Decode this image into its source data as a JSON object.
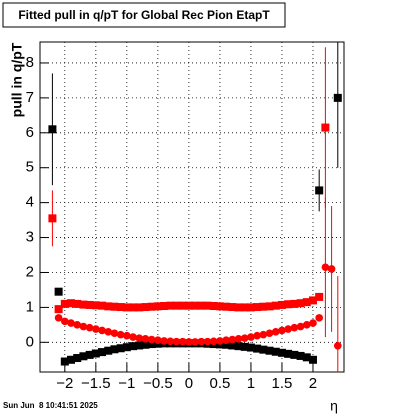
{
  "chart_data": {
    "type": "scatter",
    "title": "Fitted pull in q/pT for Global Rec Pion EtapT",
    "y_label": "pull in q/pT",
    "x_label": "η",
    "timestamp": "Sun Jun  8 10:41:51 2025",
    "xlim": [
      -2.4,
      2.5
    ],
    "ylim": [
      -0.85,
      8.6
    ],
    "xticks": [
      {
        "value": -2,
        "label": "−2"
      },
      {
        "value": -1.5,
        "label": "−1.5"
      },
      {
        "value": -1,
        "label": "−1"
      },
      {
        "value": -0.5,
        "label": "−0.5"
      },
      0,
      0.5,
      1,
      1.5,
      2
    ],
    "yticks": [
      0,
      1,
      2,
      3,
      4,
      5,
      6,
      7,
      8
    ],
    "grid": true,
    "x": [
      -2.2,
      -2.1,
      -2.0,
      -1.9,
      -1.8,
      -1.7,
      -1.6,
      -1.5,
      -1.4,
      -1.3,
      -1.2,
      -1.1,
      -1.0,
      -0.9,
      -0.8,
      -0.7,
      -0.6,
      -0.5,
      -0.4,
      -0.3,
      -0.2,
      -0.1,
      0.0,
      0.1,
      0.2,
      0.3,
      0.4,
      0.5,
      0.6,
      0.7,
      0.8,
      0.9,
      1.0,
      1.1,
      1.2,
      1.3,
      1.4,
      1.5,
      1.6,
      1.7,
      1.8,
      1.9,
      2.0,
      2.1,
      2.2,
      2.3,
      2.4
    ],
    "series": [
      {
        "color": "#000000",
        "marker": "square",
        "values": [
          6.1,
          1.45,
          -0.55,
          -0.5,
          -0.45,
          -0.4,
          -0.36,
          -0.32,
          -0.28,
          -0.24,
          -0.2,
          -0.17,
          -0.14,
          -0.11,
          -0.09,
          -0.07,
          -0.05,
          -0.04,
          -0.03,
          -0.03,
          -0.03,
          -0.03,
          -0.03,
          -0.03,
          -0.03,
          -0.04,
          -0.05,
          -0.06,
          -0.07,
          -0.09,
          -0.11,
          -0.13,
          -0.15,
          -0.18,
          -0.21,
          -0.24,
          -0.27,
          -0.3,
          -0.33,
          -0.36,
          -0.39,
          -0.43,
          -0.5,
          4.35,
          null,
          null,
          7.0
        ],
        "errors": [
          1.6,
          null,
          null,
          null,
          null,
          null,
          null,
          null,
          null,
          null,
          null,
          null,
          null,
          null,
          null,
          null,
          null,
          null,
          null,
          null,
          null,
          null,
          null,
          null,
          null,
          null,
          null,
          null,
          null,
          null,
          null,
          null,
          null,
          null,
          null,
          null,
          null,
          null,
          null,
          null,
          null,
          null,
          null,
          0.6,
          null,
          null,
          2.0
        ]
      },
      {
        "color": "#ff0000",
        "marker": "square",
        "values": [
          3.55,
          0.95,
          1.1,
          1.12,
          1.1,
          1.08,
          1.07,
          1.06,
          1.05,
          1.03,
          1.02,
          1.01,
          1.0,
          1.0,
          1.0,
          1.01,
          1.02,
          1.03,
          1.04,
          1.05,
          1.05,
          1.05,
          1.05,
          1.05,
          1.05,
          1.05,
          1.04,
          1.03,
          1.02,
          1.01,
          1.0,
          1.0,
          1.0,
          1.01,
          1.02,
          1.03,
          1.05,
          1.07,
          1.09,
          1.1,
          1.12,
          1.15,
          1.2,
          1.3,
          6.15,
          null,
          null
        ],
        "errors": [
          0.8,
          null,
          null,
          null,
          null,
          null,
          null,
          null,
          null,
          null,
          null,
          null,
          null,
          null,
          null,
          null,
          null,
          null,
          null,
          null,
          null,
          null,
          null,
          null,
          null,
          null,
          null,
          null,
          null,
          null,
          null,
          null,
          null,
          null,
          null,
          null,
          null,
          null,
          null,
          null,
          null,
          null,
          null,
          null,
          2.3,
          null,
          null
        ]
      },
      {
        "color": "#ff0000",
        "marker": "circle",
        "values": [
          null,
          0.7,
          0.6,
          0.55,
          0.5,
          0.45,
          0.42,
          0.38,
          0.34,
          0.3,
          0.26,
          0.22,
          0.19,
          0.15,
          0.12,
          0.1,
          0.08,
          0.06,
          0.04,
          0.03,
          0.02,
          0.02,
          0.01,
          0.01,
          0.02,
          0.02,
          0.03,
          0.04,
          0.06,
          0.08,
          0.1,
          0.12,
          0.15,
          0.19,
          0.22,
          0.26,
          0.3,
          0.34,
          0.38,
          0.42,
          0.45,
          0.5,
          0.55,
          0.7,
          2.15,
          2.1,
          -0.1
        ],
        "errors": [
          null,
          null,
          null,
          null,
          null,
          null,
          null,
          null,
          null,
          null,
          null,
          null,
          null,
          null,
          null,
          null,
          null,
          null,
          null,
          null,
          null,
          null,
          null,
          null,
          null,
          null,
          null,
          null,
          null,
          null,
          null,
          null,
          null,
          null,
          null,
          null,
          null,
          null,
          null,
          null,
          null,
          null,
          null,
          null,
          2.0,
          1.8,
          2.0
        ]
      }
    ]
  }
}
